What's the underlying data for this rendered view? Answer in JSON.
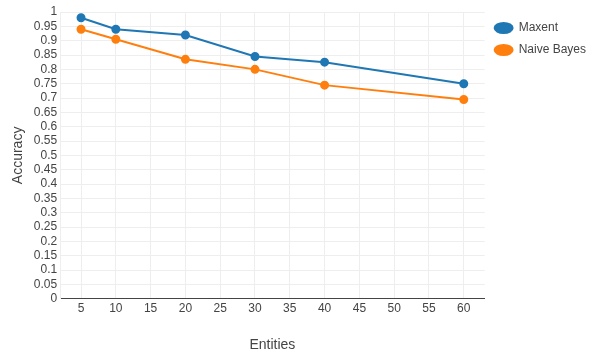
{
  "chart_data": {
    "type": "line",
    "x_label": "Entities",
    "y_label": "Accuracy",
    "x": [
      5,
      10,
      20,
      30,
      40,
      60
    ],
    "series": [
      {
        "name": "Maxent",
        "color": "#1f77b4",
        "marker": "circle",
        "values": [
          0.98,
          0.94,
          0.92,
          0.845,
          0.825,
          0.75
        ]
      },
      {
        "name": "Naive Bayes",
        "color": "#ff7f0e",
        "marker": "circle",
        "values": [
          0.94,
          0.905,
          0.835,
          0.8,
          0.745,
          0.695
        ]
      }
    ],
    "xlim": [
      2,
      63
    ],
    "xticks": [
      5,
      10,
      15,
      20,
      25,
      30,
      35,
      40,
      45,
      50,
      55,
      60
    ],
    "ylim": [
      0,
      1
    ],
    "yticks": [
      0,
      0.05,
      0.1,
      0.15,
      0.2,
      0.25,
      0.3,
      0.35,
      0.4,
      0.45,
      0.5,
      0.55,
      0.6,
      0.65,
      0.7,
      0.75,
      0.8,
      0.85,
      0.9,
      0.95,
      1
    ],
    "grid": true,
    "legend": "right"
  }
}
